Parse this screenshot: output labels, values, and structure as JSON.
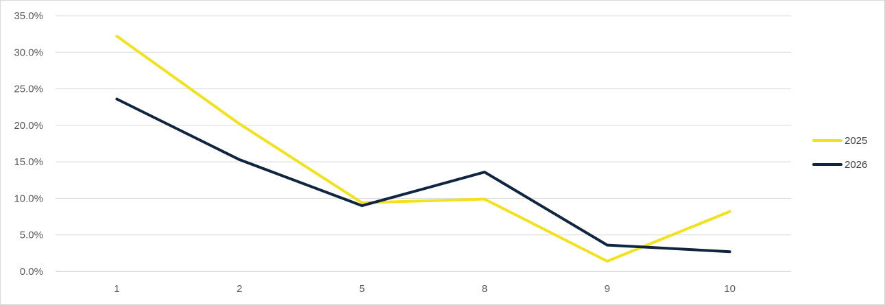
{
  "chart_data": {
    "type": "line",
    "categories": [
      "1",
      "2",
      "5",
      "8",
      "9",
      "10"
    ],
    "series": [
      {
        "name": "2025",
        "color": "#f2e21e",
        "values": [
          32.2,
          20.2,
          9.4,
          9.9,
          1.4,
          8.2
        ]
      },
      {
        "name": "2026",
        "color": "#0f2540",
        "values": [
          23.6,
          15.3,
          9.0,
          13.6,
          3.6,
          2.7
        ]
      }
    ],
    "y_ticks": [
      "0.0%",
      "5.0%",
      "10.0%",
      "15.0%",
      "20.0%",
      "25.0%",
      "30.0%",
      "35.0%"
    ],
    "ylim": [
      0,
      35
    ],
    "y_format": "percent",
    "grid": true,
    "legend_position": "right",
    "title": "",
    "xlabel": "",
    "ylabel": ""
  }
}
